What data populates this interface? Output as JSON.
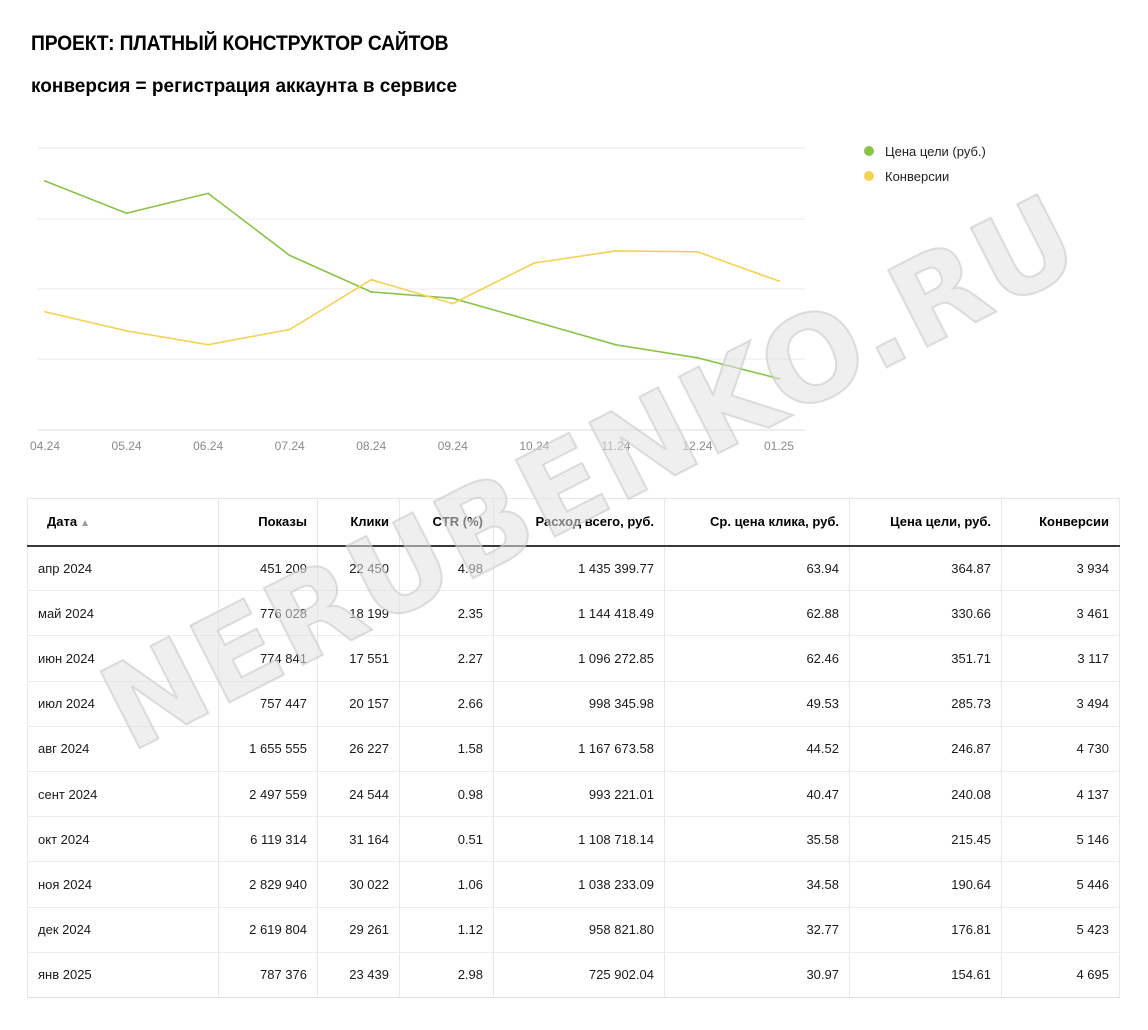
{
  "page": {
    "title": "ПРОЕКТ: ПЛАТНЫЙ КОНСТРУКТОР САЙТОВ",
    "subtitle": "конверсия = регистрация аккаунта в сервисе"
  },
  "chart_data": {
    "type": "line",
    "categories": [
      "04.24",
      "05.24",
      "06.24",
      "07.24",
      "08.24",
      "09.24",
      "10.24",
      "11.24",
      "12.24",
      "01.25"
    ],
    "series": [
      {
        "name": "Цена цели (руб.)",
        "color": "#8bc34a",
        "values": [
          364.87,
          330.66,
          351.71,
          285.73,
          246.87,
          240.08,
          215.45,
          190.64,
          176.81,
          154.61
        ]
      },
      {
        "name": "Конверсии",
        "color": "#f5d254",
        "values": [
          3934,
          3461,
          3117,
          3494,
          4730,
          4137,
          5146,
          5446,
          5423,
          4695
        ]
      }
    ],
    "grid": true,
    "legend_position": "right"
  },
  "watermark": "NERUBENKO.RU",
  "table": {
    "headers": [
      "Дата",
      "Показы",
      "Клики",
      "CTR (%)",
      "Расход всего, руб.",
      "Ср. цена клика, руб.",
      "Цена цели, руб.",
      "Конверсии"
    ],
    "sort_indicator": "▲",
    "rows": [
      [
        "апр 2024",
        "451 209",
        "22 450",
        "4.98",
        "1 435 399.77",
        "63.94",
        "364.87",
        "3 934"
      ],
      [
        "май 2024",
        "776 028",
        "18 199",
        "2.35",
        "1 144 418.49",
        "62.88",
        "330.66",
        "3 461"
      ],
      [
        "июн 2024",
        "774 841",
        "17 551",
        "2.27",
        "1 096 272.85",
        "62.46",
        "351.71",
        "3 117"
      ],
      [
        "июл 2024",
        "757 447",
        "20 157",
        "2.66",
        "998 345.98",
        "49.53",
        "285.73",
        "3 494"
      ],
      [
        "авг 2024",
        "1 655 555",
        "26 227",
        "1.58",
        "1 167 673.58",
        "44.52",
        "246.87",
        "4 730"
      ],
      [
        "сент 2024",
        "2 497 559",
        "24 544",
        "0.98",
        "993 221.01",
        "40.47",
        "240.08",
        "4 137"
      ],
      [
        "окт 2024",
        "6 119 314",
        "31 164",
        "0.51",
        "1 108 718.14",
        "35.58",
        "215.45",
        "5 146"
      ],
      [
        "ноя 2024",
        "2 829 940",
        "30 022",
        "1.06",
        "1 038 233.09",
        "34.58",
        "190.64",
        "5 446"
      ],
      [
        "дек 2024",
        "2 619 804",
        "29 261",
        "1.12",
        "958 821.80",
        "32.77",
        "176.81",
        "5 423"
      ],
      [
        "янв 2025",
        "787 376",
        "23 439",
        "2.98",
        "725 902.04",
        "30.97",
        "154.61",
        "4 695"
      ]
    ]
  }
}
